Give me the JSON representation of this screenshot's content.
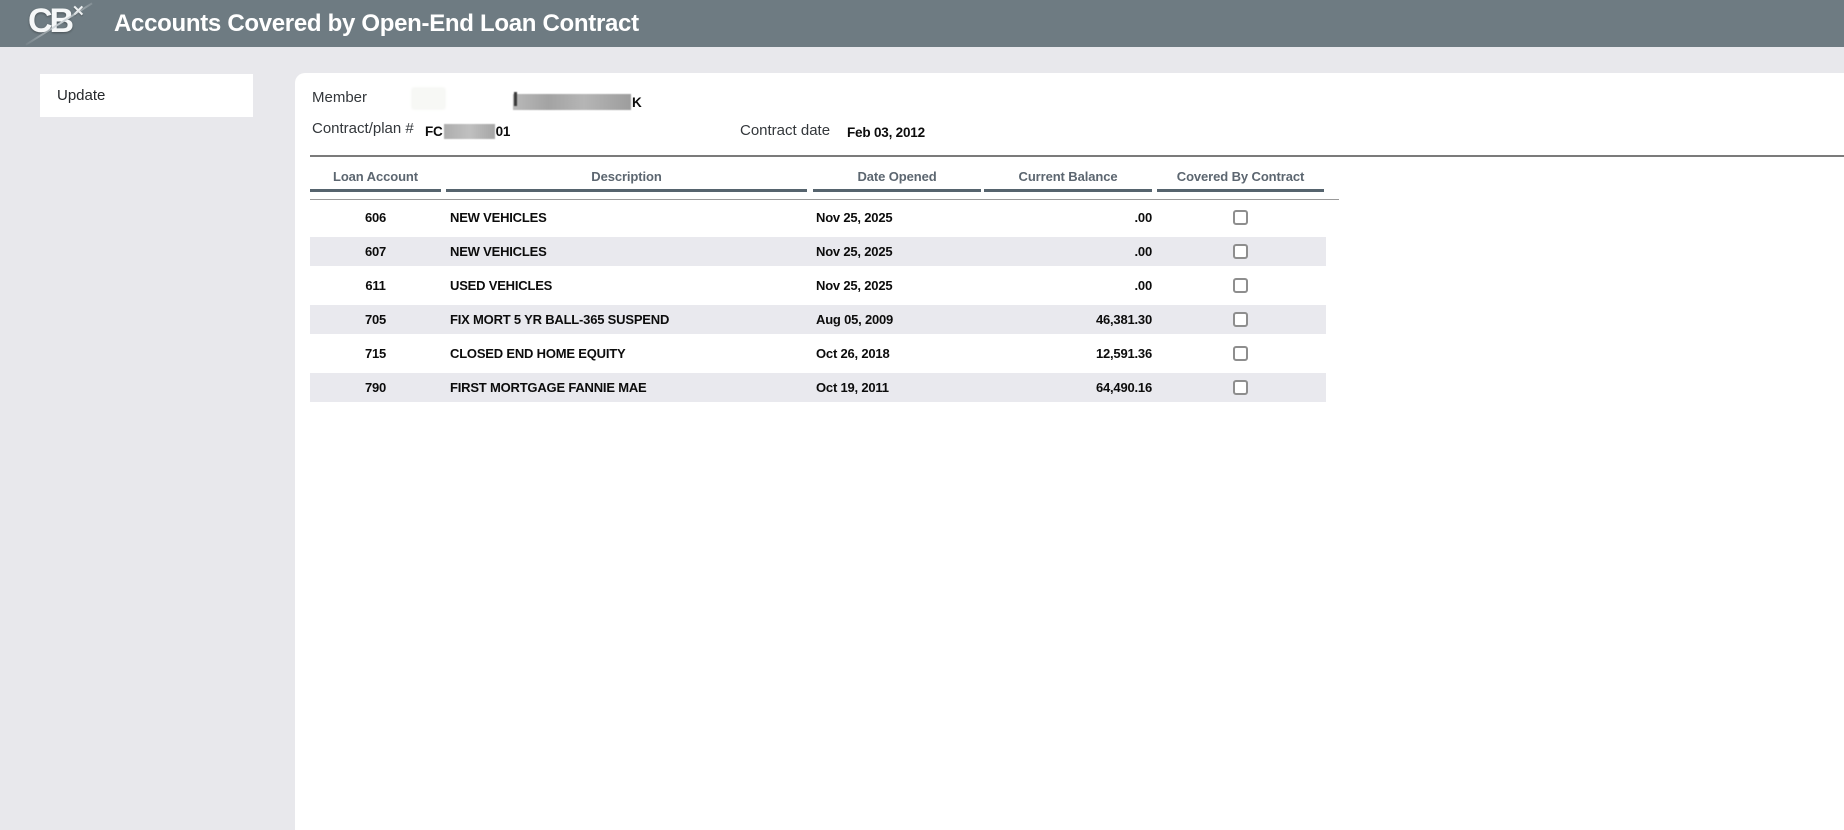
{
  "header": {
    "logo_text": "CB",
    "logo_mark": "✕",
    "title": "Accounts Covered by Open-End Loan Contract"
  },
  "sidebar": {
    "items": [
      {
        "label": "Update"
      }
    ]
  },
  "info": {
    "member_label": "Member",
    "member_value_visible_suffix": "K",
    "contract_plan_label": "Contract/plan #",
    "contract_plan_visible_prefix": "FC",
    "contract_plan_visible_suffix": "01",
    "contract_date_label": "Contract date",
    "contract_date_value": "Feb 03, 2012"
  },
  "table": {
    "columns": [
      "Loan Account",
      "Description",
      "Date Opened",
      "Current Balance",
      "Covered By Contract"
    ],
    "rows": [
      {
        "account": "606",
        "description": "NEW VEHICLES",
        "date_opened": "Nov 25, 2025",
        "current_balance": ".00",
        "covered": false
      },
      {
        "account": "607",
        "description": "NEW VEHICLES",
        "date_opened": "Nov 25, 2025",
        "current_balance": ".00",
        "covered": false
      },
      {
        "account": "611",
        "description": "USED VEHICLES",
        "date_opened": "Nov 25, 2025",
        "current_balance": ".00",
        "covered": false
      },
      {
        "account": "705",
        "description": "FIX MORT 5 YR BALL-365 SUSPEND",
        "date_opened": "Aug 05, 2009",
        "current_balance": "46,381.30",
        "covered": false
      },
      {
        "account": "715",
        "description": "CLOSED END HOME EQUITY",
        "date_opened": "Oct 26, 2018",
        "current_balance": "12,591.36",
        "covered": false
      },
      {
        "account": "790",
        "description": "FIRST MORTGAGE FANNIE MAE",
        "date_opened": "Oct 19, 2011",
        "current_balance": "64,490.16",
        "covered": false
      }
    ]
  },
  "colors": {
    "topbar_bg": "#6e7b82",
    "page_bg": "#e8e8ec",
    "row_stripe": "#e9e9ee",
    "header_text": "#5c6670",
    "header_underline": "#56646e"
  }
}
